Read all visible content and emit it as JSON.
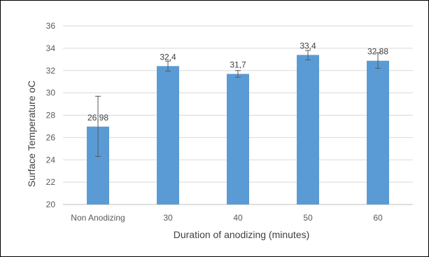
{
  "chart_data": {
    "type": "bar",
    "categories": [
      "Non Anodizing",
      "30",
      "40",
      "50",
      "60"
    ],
    "values": [
      26.98,
      32.4,
      31.7,
      33.4,
      32.88
    ],
    "data_labels": [
      "26,98",
      "32,4",
      "31,7",
      "33,4",
      "32,88"
    ],
    "error_bars": [
      [
        24.3,
        29.7
      ],
      [
        31.95,
        32.85
      ],
      [
        31.4,
        32.0
      ],
      [
        32.95,
        33.8
      ],
      [
        32.2,
        33.6
      ]
    ],
    "title": "",
    "xlabel": "Duration of anodizing (minutes)",
    "ylabel": "Surface Temperature oC",
    "ylim": [
      20,
      36
    ],
    "yticks": [
      "20",
      "22",
      "24",
      "26",
      "28",
      "30",
      "32",
      "34",
      "36"
    ],
    "ytick_values": [
      20,
      22,
      24,
      26,
      28,
      30,
      32,
      34,
      36
    ],
    "grid": "horizontal",
    "legend": "none",
    "bar_color": "#5b9bd5"
  }
}
